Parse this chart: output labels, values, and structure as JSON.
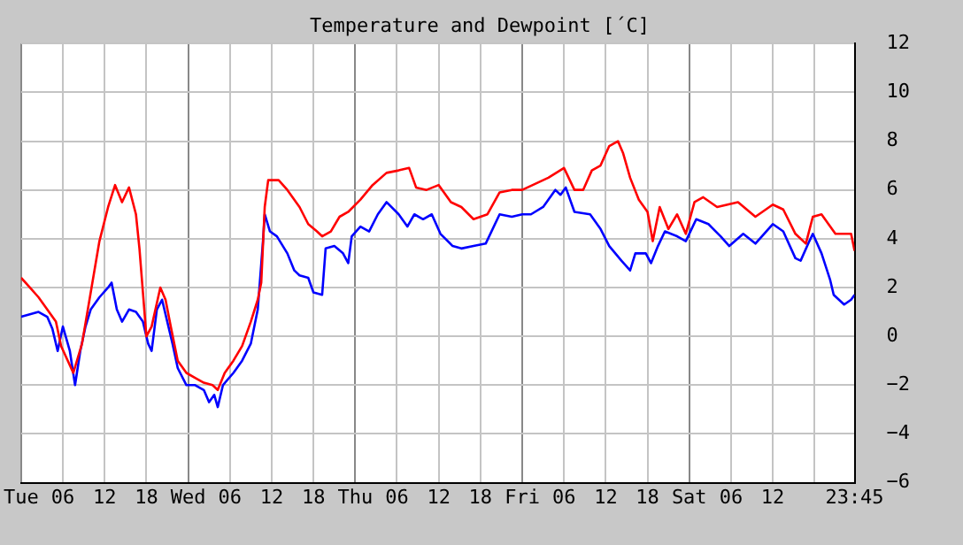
{
  "chart_data": {
    "type": "line",
    "title": "Temperature and Dewpoint [´C]",
    "xlim": [
      "--01-02T00:00",
      "--01-06T23:45"
    ],
    "ylim": [
      -6,
      12
    ],
    "xticks": [
      {
        "value": "--01-02T00:00",
        "label": "Tue"
      },
      {
        "value": "--01-02T06:00",
        "label": "06"
      },
      {
        "value": "--01-02T12:00",
        "label": "12"
      },
      {
        "value": "--01-02T18:00",
        "label": "18"
      },
      {
        "value": "--01-03T00:00",
        "label": "Wed"
      },
      {
        "value": "--01-03T06:00",
        "label": "06"
      },
      {
        "value": "--01-03T12:00",
        "label": "12"
      },
      {
        "value": "--01-03T18:00",
        "label": "18"
      },
      {
        "value": "--01-04T00:00",
        "label": "Thu"
      },
      {
        "value": "--01-04T06:00",
        "label": "06"
      },
      {
        "value": "--01-04T12:00",
        "label": "12"
      },
      {
        "value": "--01-04T18:00",
        "label": "18"
      },
      {
        "value": "--01-05T00:00",
        "label": "Fri"
      },
      {
        "value": "--01-05T06:00",
        "label": "06"
      },
      {
        "value": "--01-05T12:00",
        "label": "12"
      },
      {
        "value": "--01-05T18:00",
        "label": "18"
      },
      {
        "value": "--01-06T00:00",
        "label": "Sat"
      },
      {
        "value": "--01-06T06:00",
        "label": "06"
      },
      {
        "value": "--01-06T12:00",
        "label": "12"
      },
      {
        "value": "--01-06T18:00",
        "label": null
      },
      {
        "value": "--01-06T23:45",
        "label": "23:45"
      }
    ],
    "yticks": [
      -6,
      -4,
      -2,
      0,
      2,
      4,
      6,
      8,
      10,
      12
    ],
    "grid": true,
    "legend": false,
    "marker": "none",
    "series": [
      {
        "color": "#ff0000",
        "x": [
          "--01-02T00:00",
          "--01-02T01:15",
          "--01-02T02:30",
          "--01-02T03:45",
          "--01-02T05:00",
          "--01-02T05:45",
          "--01-02T07:30",
          "--01-02T08:45",
          "--01-02T10:00",
          "--01-02T11:15",
          "--01-02T12:30",
          "--01-02T13:30",
          "--01-02T14:30",
          "--01-02T15:30",
          "--01-02T16:30",
          "--01-02T17:00",
          "--01-02T17:30",
          "--01-02T18:00",
          "--01-02T18:45",
          "--01-02T20:00",
          "--01-02T20:45",
          "--01-02T21:30",
          "--01-02T22:30",
          "--01-02T23:45",
          "--01-03T01:00",
          "--01-03T02:15",
          "--01-03T03:30",
          "--01-03T04:15",
          "--01-03T05:15",
          "--01-03T06:30",
          "--01-03T07:45",
          "--01-03T09:00",
          "--01-03T10:00",
          "--01-03T10:30",
          "--01-03T11:00",
          "--01-03T11:30",
          "--01-03T13:00",
          "--01-03T14:15",
          "--01-03T16:00",
          "--01-03T17:15",
          "--01-03T18:30",
          "--01-03T19:15",
          "--01-03T20:30",
          "--01-03T21:45",
          "--01-03T23:00",
          "--01-04T00:45",
          "--01-04T02:30",
          "--01-04T04:30",
          "--01-04T06:15",
          "--01-04T07:45",
          "--01-04T08:45",
          "--01-04T10:15",
          "--01-04T12:00",
          "--01-04T13:45",
          "--01-04T15:15",
          "--01-04T17:00",
          "--01-04T19:00",
          "--01-04T20:45",
          "--01-04T22:30",
          "--01-05T00:00",
          "--01-05T02:15",
          "--01-05T03:45",
          "--01-05T06:00",
          "--01-05T07:30",
          "--01-05T08:45",
          "--01-05T10:00",
          "--01-05T11:15",
          "--01-05T12:30",
          "--01-05T13:45",
          "--01-05T14:30",
          "--01-05T15:30",
          "--01-05T16:45",
          "--01-05T18:00",
          "--01-05T18:45",
          "--01-05T19:45",
          "--01-05T21:00",
          "--01-05T22:15",
          "--01-05T23:30",
          "--01-06T00:45",
          "--01-06T02:00",
          "--01-06T04:00",
          "--01-06T07:00",
          "--01-06T09:30",
          "--01-06T12:00",
          "--01-06T13:30",
          "--01-06T15:15",
          "--01-06T16:45",
          "--01-06T17:45",
          "--01-06T19:00",
          "--01-06T21:00",
          "--01-06T23:15",
          "--01-06T23:45"
        ],
        "values": [
          2.4,
          2.0,
          1.6,
          1.1,
          0.6,
          -0.4,
          -1.5,
          -0.3,
          1.8,
          3.9,
          5.3,
          6.2,
          5.5,
          6.1,
          5.0,
          3.6,
          1.8,
          0,
          0.4,
          2.0,
          1.5,
          0.4,
          -1.0,
          -1.5,
          -1.7,
          -1.9,
          -2.0,
          -2.2,
          -1.5,
          -1.0,
          -0.4,
          0.6,
          1.5,
          2.2,
          5.3,
          6.4,
          6.4,
          6.0,
          5.3,
          4.6,
          4.3,
          4.1,
          4.3,
          4.9,
          5.1,
          5.6,
          6.2,
          6.7,
          6.8,
          6.9,
          6.1,
          6.0,
          6.2,
          5.5,
          5.3,
          4.8,
          5.0,
          5.9,
          6.0,
          6.0,
          6.3,
          6.5,
          6.9,
          6.0,
          6.0,
          6.8,
          7.0,
          7.8,
          8.0,
          7.5,
          6.5,
          5.6,
          5.1,
          3.9,
          5.3,
          4.4,
          5.0,
          4.2,
          5.5,
          5.7,
          5.3,
          5.5,
          4.9,
          5.4,
          5.2,
          4.2,
          3.8,
          4.9,
          5.0,
          4.2,
          4.2,
          3.5
        ]
      },
      {
        "color": "#0000ff",
        "x": [
          "--01-02T00:00",
          "--01-02T01:15",
          "--01-02T02:30",
          "--01-02T03:45",
          "--01-02T04:30",
          "--01-02T05:15",
          "--01-02T06:00",
          "--01-02T07:00",
          "--01-02T07:45",
          "--01-02T08:30",
          "--01-02T09:15",
          "--01-02T10:00",
          "--01-02T11:15",
          "--01-02T12:30",
          "--01-02T13:00",
          "--01-02T13:45",
          "--01-02T14:30",
          "--01-02T15:30",
          "--01-02T16:30",
          "--01-02T17:30",
          "--01-02T18:15",
          "--01-02T18:45",
          "--01-02T19:30",
          "--01-02T20:15",
          "--01-02T21:00",
          "--01-02T21:45",
          "--01-02T22:30",
          "--01-02T23:45",
          "--01-03T01:00",
          "--01-03T02:15",
          "--01-03T03:00",
          "--01-03T03:45",
          "--01-03T04:15",
          "--01-03T05:00",
          "--01-03T06:30",
          "--01-03T07:45",
          "--01-03T09:00",
          "--01-03T10:00",
          "--01-03T10:45",
          "--01-03T11:00",
          "--01-03T11:45",
          "--01-03T12:45",
          "--01-03T14:15",
          "--01-03T15:15",
          "--01-03T16:00",
          "--01-03T17:15",
          "--01-03T18:00",
          "--01-03T19:15",
          "--01-03T19:45",
          "--01-03T21:00",
          "--01-03T22:15",
          "--01-03T23:00",
          "--01-03T23:30",
          "--01-04T00:45",
          "--01-04T02:00",
          "--01-04T03:15",
          "--01-04T04:30",
          "--01-04T06:15",
          "--01-04T07:30",
          "--01-04T08:30",
          "--01-04T09:45",
          "--01-04T11:00",
          "--01-04T12:15",
          "--01-04T14:00",
          "--01-04T15:15",
          "--01-04T17:00",
          "--01-04T18:45",
          "--01-04T20:45",
          "--01-04T22:30",
          "--01-05T00:00",
          "--01-05T01:15",
          "--01-05T03:00",
          "--01-05T04:45",
          "--01-05T05:30",
          "--01-05T06:15",
          "--01-05T07:30",
          "--01-05T09:45",
          "--01-05T11:15",
          "--01-05T12:30",
          "--01-05T14:15",
          "--01-05T15:30",
          "--01-05T16:15",
          "--01-05T17:45",
          "--01-05T18:30",
          "--01-05T19:30",
          "--01-05T20:30",
          "--01-05T22:15",
          "--01-05T23:30",
          "--01-06T01:00",
          "--01-06T02:45",
          "--01-06T04:30",
          "--01-06T05:45",
          "--01-06T07:45",
          "--01-06T09:30",
          "--01-06T12:00",
          "--01-06T13:30",
          "--01-06T15:15",
          "--01-06T16:00",
          "--01-06T17:15",
          "--01-06T17:45",
          "--01-06T19:00",
          "--01-06T20:15",
          "--01-06T20:45",
          "--01-06T22:15",
          "--01-06T23:15",
          "--01-06T23:45"
        ],
        "values": [
          0.8,
          0.9,
          1.0,
          0.8,
          0.3,
          -0.6,
          0.4,
          -0.6,
          -2.0,
          -0.6,
          0.4,
          1.1,
          1.6,
          2.0,
          2.2,
          1.1,
          0.6,
          1.1,
          1.0,
          0.6,
          -0.3,
          -0.6,
          1.1,
          1.5,
          0.6,
          -0.3,
          -1.3,
          -2.0,
          -2.0,
          -2.2,
          -2.7,
          -2.4,
          -2.9,
          -2.0,
          -1.5,
          -1.0,
          -0.3,
          1.1,
          3.9,
          5.0,
          4.3,
          4.1,
          3.4,
          2.7,
          2.5,
          2.4,
          1.8,
          1.7,
          3.6,
          3.7,
          3.4,
          3.0,
          4.1,
          4.5,
          4.3,
          5.0,
          5.5,
          5.0,
          4.5,
          5.0,
          4.8,
          5.0,
          4.2,
          3.7,
          3.6,
          3.7,
          3.8,
          5.0,
          4.9,
          5.0,
          5.0,
          5.3,
          6.0,
          5.8,
          6.1,
          5.1,
          5.0,
          4.4,
          3.7,
          3.1,
          2.7,
          3.4,
          3.4,
          3.0,
          3.7,
          4.3,
          4.1,
          3.9,
          4.8,
          4.6,
          4.1,
          3.7,
          4.2,
          3.8,
          4.6,
          4.3,
          3.2,
          3.1,
          3.9,
          4.2,
          3.4,
          2.3,
          1.7,
          1.3,
          1.5,
          1.7
        ]
      }
    ]
  }
}
